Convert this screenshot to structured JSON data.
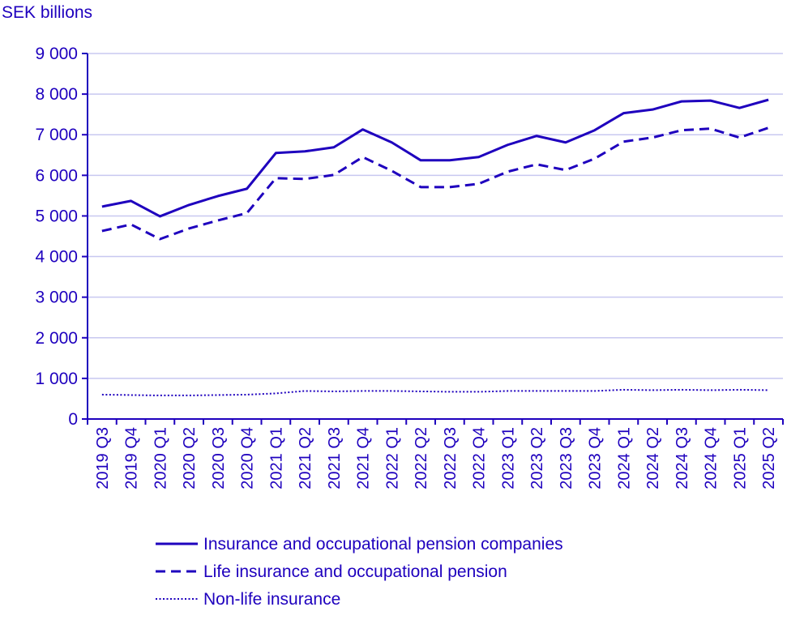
{
  "chart_data": {
    "type": "line",
    "title": "",
    "ylabel": "SEK billions",
    "xlabel": "",
    "ylim": [
      0,
      9000
    ],
    "yticks": [
      0,
      1000,
      2000,
      3000,
      4000,
      5000,
      6000,
      7000,
      8000,
      9000
    ],
    "ytick_labels": [
      "0",
      "1 000",
      "2 000",
      "3 000",
      "4 000",
      "5 000",
      "6 000",
      "7 000",
      "8 000",
      "9 000"
    ],
    "grid": true,
    "legend_position": "bottom",
    "color": "#1e00be",
    "grid_color": "#c8c8f0",
    "categories": [
      "2019 Q3",
      "2019 Q4",
      "2020 Q1",
      "2020 Q2",
      "2020 Q3",
      "2020 Q4",
      "2021 Q1",
      "2021 Q2",
      "2021 Q3",
      "2021 Q4",
      "2022 Q1",
      "2022 Q2",
      "2022 Q3",
      "2022 Q4",
      "2023 Q1",
      "2023 Q2",
      "2023 Q3",
      "2023 Q4",
      "2024 Q1",
      "2024 Q2",
      "2024 Q3",
      "2024 Q4",
      "2025 Q1",
      "2025 Q2"
    ],
    "series": [
      {
        "name": "Insurance and occupational pension companies",
        "style": "solid",
        "values": [
          5230,
          5370,
          4990,
          5270,
          5490,
          5670,
          6550,
          6590,
          6690,
          7130,
          6810,
          6370,
          6370,
          6450,
          6750,
          6970,
          6810,
          7110,
          7530,
          7620,
          7820,
          7840,
          7660,
          7860
        ]
      },
      {
        "name": "Life insurance and occupational pension",
        "style": "dashed",
        "values": [
          4630,
          4790,
          4430,
          4690,
          4890,
          5070,
          5930,
          5910,
          6010,
          6450,
          6110,
          5710,
          5710,
          5790,
          6090,
          6270,
          6130,
          6410,
          6830,
          6930,
          7110,
          7150,
          6930,
          7170
        ]
      },
      {
        "name": "Non-life insurance",
        "style": "dotted",
        "values": [
          600,
          590,
          580,
          580,
          590,
          600,
          630,
          690,
          680,
          690,
          690,
          680,
          670,
          670,
          690,
          690,
          690,
          690,
          720,
          710,
          720,
          710,
          720,
          710
        ]
      }
    ]
  }
}
